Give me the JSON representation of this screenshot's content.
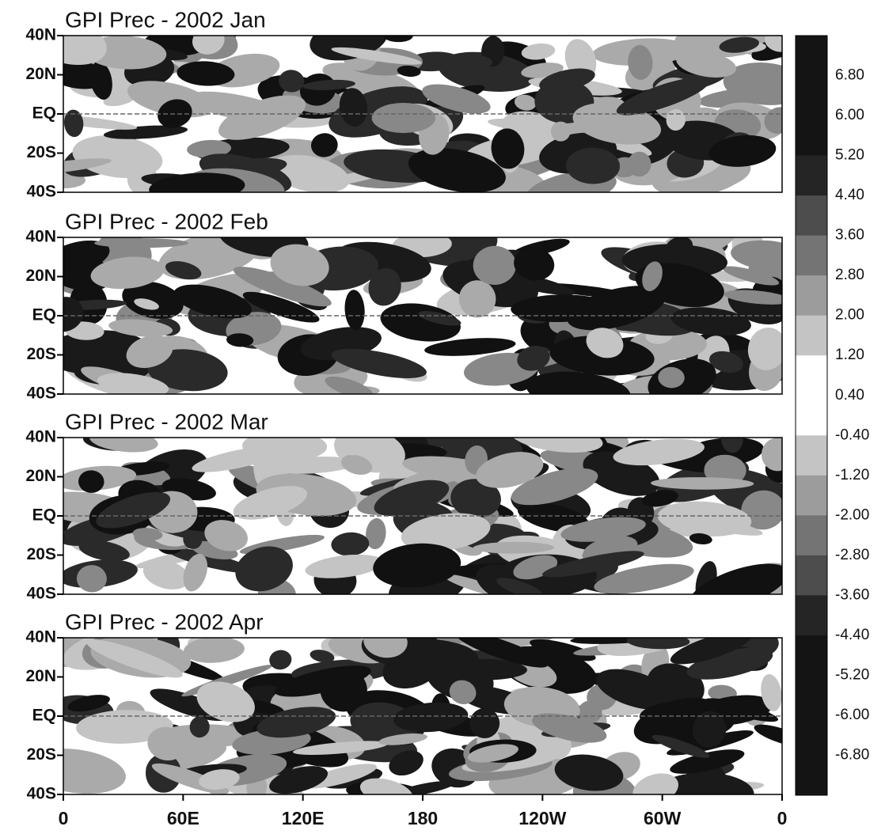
{
  "panels": [
    {
      "title": "GPI Prec  - 2002  Jan"
    },
    {
      "title": "GPI Prec  - 2002  Feb"
    },
    {
      "title": "GPI Prec  - 2002  Mar"
    },
    {
      "title": "GPI Prec  - 2002  Apr"
    }
  ],
  "lat_labels": [
    "40N",
    "20N",
    "EQ",
    "20S",
    "40S"
  ],
  "lon_labels": [
    "0",
    "60E",
    "120E",
    "180",
    "120W",
    "60W",
    "0"
  ],
  "colorbar_labels": [
    "6.80",
    "6.00",
    "5.20",
    "4.40",
    "3.60",
    "2.80",
    "2.00",
    "1.20",
    "0.40",
    "-0.40",
    "-1.20",
    "-2.00",
    "-2.80",
    "-3.60",
    "-4.40",
    "-5.20",
    "-6.00",
    "-6.80"
  ]
}
